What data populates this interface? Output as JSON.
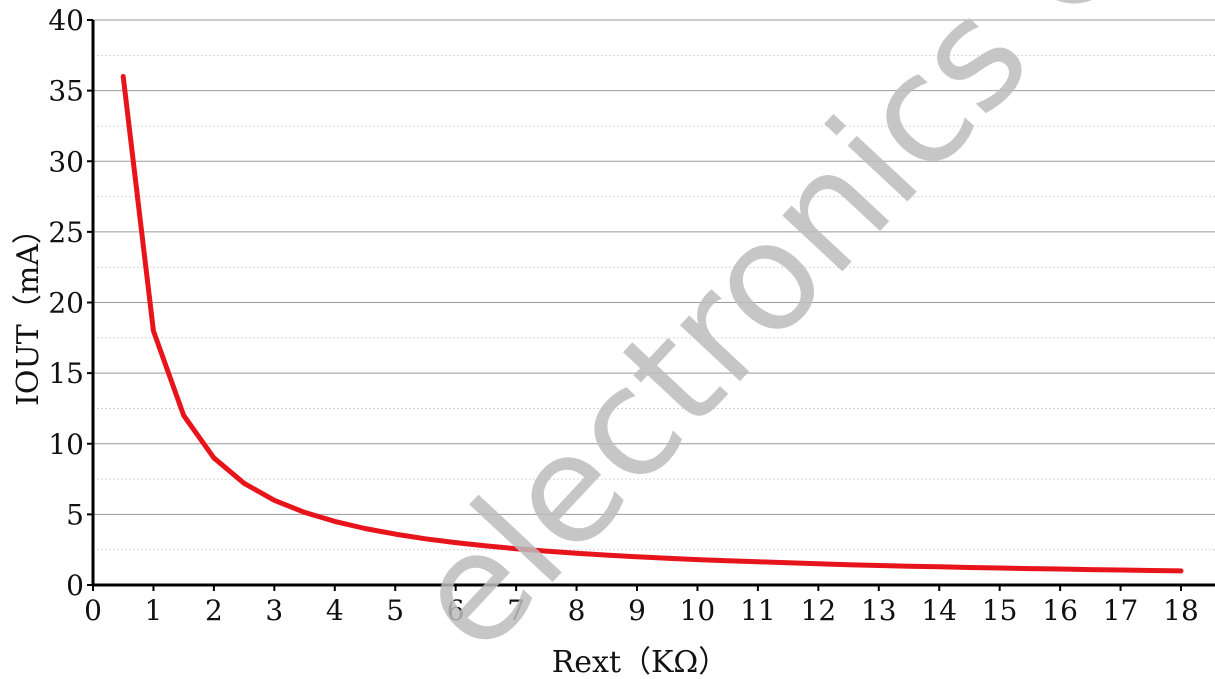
{
  "watermark": "electronics Confidential",
  "chart_data": {
    "type": "line",
    "title": "",
    "xlabel": "Rext（KΩ）",
    "ylabel": "IOUT（mA）",
    "xlim": [
      0,
      18
    ],
    "ylim": [
      0,
      40
    ],
    "x_ticks": [
      "0",
      "1",
      "2",
      "3",
      "4",
      "5",
      "6",
      "7",
      "8",
      "9",
      "10",
      "11",
      "12",
      "13",
      "14",
      "15",
      "16",
      "17",
      "18"
    ],
    "y_ticks": [
      "0",
      "5",
      "10",
      "15",
      "20",
      "25",
      "30",
      "35",
      "40"
    ],
    "grid": "horizontal major solid, minor dotted",
    "line_color": "#e8141c",
    "series": [
      {
        "x": [
          0.5,
          1,
          1.5,
          2,
          2.5,
          3,
          3.5,
          4,
          4.5,
          5,
          5.5,
          6,
          6.5,
          7,
          7.5,
          8,
          8.5,
          9,
          9.5,
          10,
          10.5,
          11,
          11.5,
          12,
          12.5,
          13,
          13.5,
          14,
          14.5,
          15,
          15.5,
          16,
          16.5,
          17,
          17.5,
          18
        ],
        "y": [
          36,
          18,
          12,
          9,
          7.2,
          6,
          5.14,
          4.5,
          4,
          3.6,
          3.27,
          3,
          2.77,
          2.57,
          2.4,
          2.25,
          2.12,
          2,
          1.89,
          1.8,
          1.71,
          1.64,
          1.57,
          1.5,
          1.44,
          1.38,
          1.33,
          1.29,
          1.24,
          1.2,
          1.16,
          1.13,
          1.09,
          1.06,
          1.03,
          1
        ]
      }
    ]
  }
}
